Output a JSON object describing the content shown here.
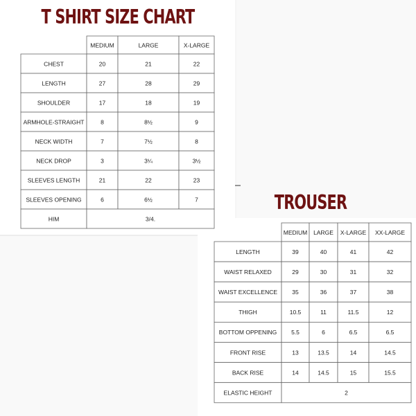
{
  "tshirt": {
    "title": "T SHIRT SIZE CHART",
    "header": [
      "MEDIUM",
      "LARGE",
      "X-LARGE"
    ],
    "rows": [
      [
        "CHEST",
        20,
        21,
        22
      ],
      [
        "LENGTH",
        27,
        28,
        29
      ],
      [
        "SHOULDER",
        17,
        18,
        19
      ],
      [
        "ARMHOLE-STRAIGHT",
        8,
        "8½",
        9
      ],
      [
        "NECK WIDTH",
        7,
        "7½",
        8
      ],
      [
        "NECK DROP",
        3,
        "3¼",
        "3½"
      ],
      [
        "SLEEVES LENGTH",
        21,
        22,
        23
      ],
      [
        "SLEEVES OPENING",
        6,
        "6½",
        7
      ],
      [
        "HIM",
        "3/4."
      ]
    ]
  },
  "trouser": {
    "title": "TROUSER",
    "header": [
      "MEDIUM",
      "LARGE",
      "X-LARGE",
      "XX-LARGE"
    ],
    "rows": [
      [
        "LENGTH",
        39,
        40,
        41,
        42
      ],
      [
        "WAIST RELAXED",
        29,
        30,
        31,
        32
      ],
      [
        "WAIST EXCELLENCE",
        35,
        36,
        37,
        38
      ],
      [
        "THIGH",
        10.5,
        11,
        11.5,
        12
      ],
      [
        "BOTTOM OPPENING",
        5.5,
        6,
        6.5,
        6.5
      ],
      [
        "FRONT RISE",
        13,
        13.5,
        14,
        14.5
      ],
      [
        "BACK RISE",
        14,
        14.5,
        15,
        15.5
      ],
      [
        "ELASTIC HEIGHT",
        2
      ]
    ]
  }
}
